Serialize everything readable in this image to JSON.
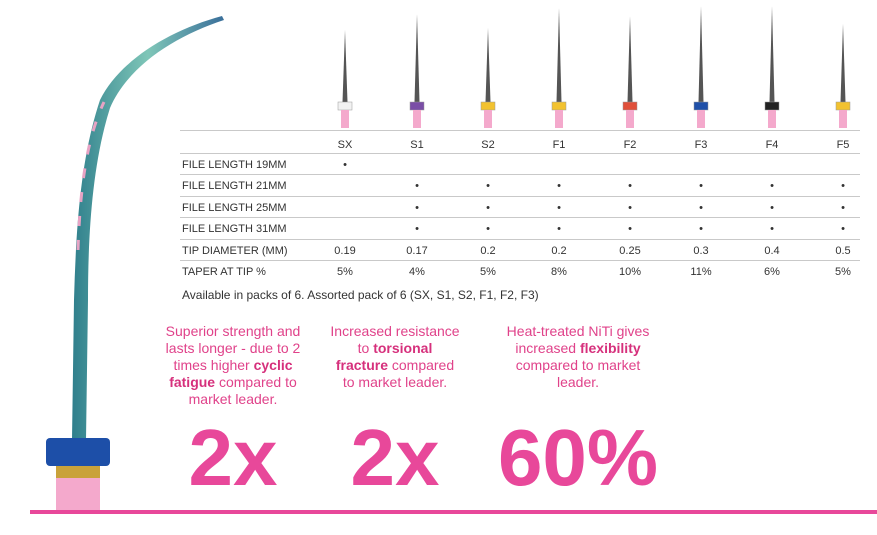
{
  "table": {
    "columns": [
      "SX",
      "S1",
      "S2",
      "F1",
      "F2",
      "F3",
      "F4",
      "F5"
    ],
    "rows": [
      {
        "label": "FILE LENGTH 19MM",
        "cells": [
          "•",
          null,
          null,
          null,
          null,
          null,
          null,
          null
        ]
      },
      {
        "label": "FILE LENGTH 21MM",
        "cells": [
          null,
          "•",
          "•",
          "•",
          "•",
          "•",
          "•",
          "•"
        ]
      },
      {
        "label": "FILE LENGTH 25MM",
        "cells": [
          null,
          "•",
          "•",
          "•",
          "•",
          "•",
          "•",
          "•"
        ]
      },
      {
        "label": "FILE LENGTH 31MM",
        "cells": [
          null,
          "•",
          "•",
          "•",
          "•",
          "•",
          "•",
          "•"
        ]
      },
      {
        "label": "TIP DIAMETER (MM)",
        "cells": [
          "0.19",
          "0.17",
          "0.2",
          "0.2",
          "0.25",
          "0.3",
          "0.4",
          "0.5"
        ]
      },
      {
        "label": "TAPER AT TIP %",
        "cells": [
          "5%",
          "4%",
          "5%",
          "8%",
          "10%",
          "11%",
          "6%",
          "5%"
        ]
      }
    ]
  },
  "note": "Available in packs of 6. Assorted pack of 6 (SX, S1, S2, F1, F2, F3)",
  "callouts": [
    {
      "parts": [
        {
          "text": "Superior strength and lasts longer - due to 2 times higher "
        },
        {
          "text": "cyclic fatigue",
          "bold": true
        },
        {
          "text": " compared to market leader."
        }
      ],
      "stat": "2x"
    },
    {
      "parts": [
        {
          "text": "Increased resistance to "
        },
        {
          "text": "torsional fracture",
          "bold": true
        },
        {
          "text": " compared to market leader."
        }
      ],
      "stat": "2x"
    },
    {
      "parts": [
        {
          "text": "Heat-treated NiTi gives increased "
        },
        {
          "text": "flexibility",
          "bold": true
        },
        {
          "text": " compared to market leader."
        }
      ],
      "stat": "60%"
    }
  ]
}
